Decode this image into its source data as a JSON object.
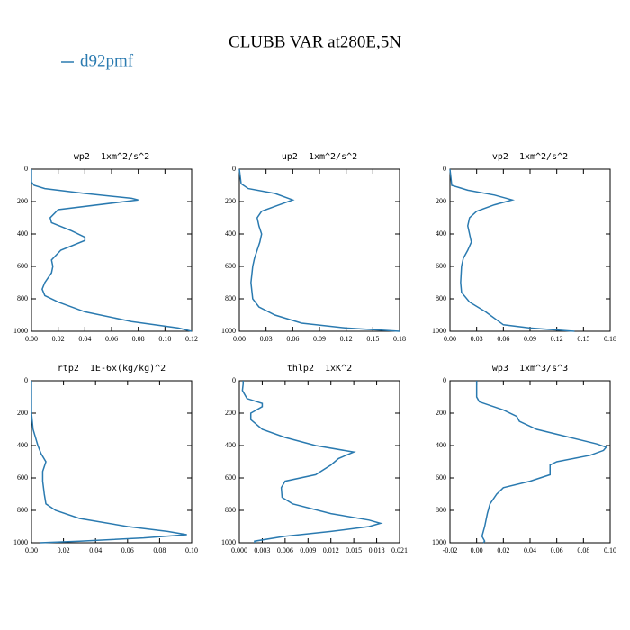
{
  "title": "CLUBB VAR at280E,5N",
  "legend": {
    "name": "d92pmf",
    "color": "#2a7ab0"
  },
  "chart_data": [
    {
      "type": "line",
      "title": "wp2  1xm^2/s^2",
      "levels": [
        0,
        80,
        100,
        120,
        150,
        180,
        190,
        200,
        250,
        300,
        330,
        380,
        420,
        440,
        500,
        560,
        600,
        640,
        700,
        740,
        780,
        820,
        880,
        940,
        980,
        1000
      ],
      "series": [
        {
          "values": [
            0,
            0,
            0.002,
            0.01,
            0.04,
            0.075,
            0.08,
            0.07,
            0.02,
            0.014,
            0.015,
            0.03,
            0.04,
            0.04,
            0.022,
            0.015,
            0.016,
            0.015,
            0.01,
            0.008,
            0.01,
            0.02,
            0.04,
            0.075,
            0.11,
            0.12
          ]
        }
      ],
      "xlim": [
        0,
        0.12
      ],
      "xticks": [
        {
          "value": 0,
          "label": "0.00"
        },
        {
          "value": 0.02,
          "label": "0.02"
        },
        {
          "value": 0.04,
          "label": "0.04"
        },
        {
          "value": 0.06,
          "label": "0.06"
        },
        {
          "value": 0.08,
          "label": "0.08"
        },
        {
          "value": 0.1,
          "label": "0.10"
        },
        {
          "value": 0.12,
          "label": "0.12"
        }
      ],
      "ylim": [
        0,
        1000
      ],
      "y_inverted": true,
      "yticks": [
        0,
        200,
        400,
        600,
        800,
        1000
      ]
    },
    {
      "type": "line",
      "title": "up2  1xm^2/s^2",
      "levels": [
        0,
        90,
        120,
        150,
        190,
        220,
        260,
        300,
        350,
        400,
        450,
        500,
        550,
        600,
        700,
        800,
        850,
        900,
        950,
        980,
        1000
      ],
      "series": [
        {
          "values": [
            0,
            0.002,
            0.01,
            0.04,
            0.06,
            0.045,
            0.025,
            0.02,
            0.022,
            0.025,
            0.023,
            0.02,
            0.017,
            0.015,
            0.013,
            0.015,
            0.022,
            0.04,
            0.07,
            0.12,
            0.18
          ]
        }
      ],
      "xlim": [
        0,
        0.18
      ],
      "xticks": [
        {
          "value": 0,
          "label": "0.00"
        },
        {
          "value": 0.03,
          "label": "0.03"
        },
        {
          "value": 0.06,
          "label": "0.06"
        },
        {
          "value": 0.09,
          "label": "0.09"
        },
        {
          "value": 0.12,
          "label": "0.12"
        },
        {
          "value": 0.15,
          "label": "0.15"
        },
        {
          "value": 0.18,
          "label": "0.18"
        }
      ],
      "ylim": [
        0,
        1000
      ],
      "y_inverted": true,
      "yticks": [
        0,
        200,
        400,
        600,
        800,
        1000
      ]
    },
    {
      "type": "line",
      "title": "vp2  1xm^2/s^2",
      "levels": [
        0,
        100,
        130,
        160,
        190,
        220,
        260,
        300,
        350,
        400,
        450,
        500,
        550,
        600,
        700,
        760,
        820,
        880,
        940,
        960,
        980,
        1000
      ],
      "series": [
        {
          "values": [
            0,
            0.002,
            0.02,
            0.05,
            0.07,
            0.05,
            0.03,
            0.022,
            0.02,
            0.022,
            0.024,
            0.02,
            0.015,
            0.013,
            0.012,
            0.013,
            0.022,
            0.04,
            0.055,
            0.06,
            0.09,
            0.14
          ]
        }
      ],
      "xlim": [
        0,
        0.18
      ],
      "xticks": [
        {
          "value": 0,
          "label": "0.00"
        },
        {
          "value": 0.03,
          "label": "0.03"
        },
        {
          "value": 0.06,
          "label": "0.06"
        },
        {
          "value": 0.09,
          "label": "0.09"
        },
        {
          "value": 0.12,
          "label": "0.12"
        },
        {
          "value": 0.15,
          "label": "0.15"
        },
        {
          "value": 0.18,
          "label": "0.18"
        }
      ],
      "ylim": [
        0,
        1000
      ],
      "y_inverted": true,
      "yticks": [
        0,
        200,
        400,
        600,
        800,
        1000
      ]
    },
    {
      "type": "line",
      "title": "rtp2  1E-6x(kg/kg)^2",
      "levels": [
        0,
        200,
        300,
        400,
        450,
        500,
        560,
        620,
        700,
        760,
        800,
        850,
        900,
        930,
        950,
        970,
        990,
        1000
      ],
      "series": [
        {
          "values": [
            0,
            0,
            0.001,
            0.004,
            0.006,
            0.009,
            0.007,
            0.007,
            0.008,
            0.009,
            0.015,
            0.03,
            0.06,
            0.085,
            0.097,
            0.07,
            0.03,
            0.005
          ]
        }
      ],
      "xlim": [
        0,
        0.1
      ],
      "xticks": [
        {
          "value": 0,
          "label": "0.00"
        },
        {
          "value": 0.02,
          "label": "0.02"
        },
        {
          "value": 0.04,
          "label": "0.04"
        },
        {
          "value": 0.06,
          "label": "0.06"
        },
        {
          "value": 0.08,
          "label": "0.08"
        },
        {
          "value": 0.1,
          "label": "0.10"
        }
      ],
      "ylim": [
        0,
        1000
      ],
      "y_inverted": true,
      "yticks": [
        0,
        200,
        400,
        600,
        800,
        1000
      ]
    },
    {
      "type": "line",
      "title": "thlp2  1xK^2",
      "levels": [
        0,
        20,
        60,
        110,
        140,
        160,
        200,
        240,
        300,
        350,
        400,
        440,
        480,
        520,
        580,
        620,
        660,
        720,
        760,
        820,
        860,
        880,
        900,
        930,
        960,
        990,
        1000
      ],
      "series": [
        {
          "values": [
            0.0005,
            0.0005,
            0.0004,
            0.001,
            0.003,
            0.003,
            0.0015,
            0.0015,
            0.003,
            0.006,
            0.01,
            0.015,
            0.013,
            0.012,
            0.01,
            0.006,
            0.0055,
            0.0056,
            0.007,
            0.012,
            0.017,
            0.0185,
            0.017,
            0.012,
            0.006,
            0.002,
            0.002
          ]
        }
      ],
      "xlim": [
        0,
        0.021
      ],
      "xticks": [
        {
          "value": 0,
          "label": "0.000"
        },
        {
          "value": 0.003,
          "label": "0.003"
        },
        {
          "value": 0.006,
          "label": "0.006"
        },
        {
          "value": 0.009,
          "label": "0.009"
        },
        {
          "value": 0.012,
          "label": "0.012"
        },
        {
          "value": 0.015,
          "label": "0.015"
        },
        {
          "value": 0.018,
          "label": "0.018"
        },
        {
          "value": 0.021,
          "label": "0.021"
        }
      ],
      "ylim": [
        0,
        1000
      ],
      "y_inverted": true,
      "yticks": [
        0,
        200,
        400,
        600,
        800,
        1000
      ]
    },
    {
      "type": "line",
      "title": "wp3  1xm^3/s^3",
      "levels": [
        0,
        100,
        130,
        180,
        220,
        250,
        300,
        350,
        390,
        410,
        430,
        460,
        500,
        520,
        580,
        620,
        660,
        700,
        760,
        820,
        900,
        960,
        990,
        1000
      ],
      "series": [
        {
          "values": [
            0,
            0,
            0.002,
            0.02,
            0.03,
            0.032,
            0.045,
            0.07,
            0.09,
            0.097,
            0.095,
            0.085,
            0.06,
            0.055,
            0.055,
            0.04,
            0.02,
            0.015,
            0.01,
            0.008,
            0.006,
            0.004,
            0.006,
            0.005
          ]
        }
      ],
      "xlim": [
        -0.02,
        0.1
      ],
      "xticks": [
        {
          "value": -0.02,
          "label": "-0.02"
        },
        {
          "value": 0,
          "label": "0.00"
        },
        {
          "value": 0.02,
          "label": "0.02"
        },
        {
          "value": 0.04,
          "label": "0.04"
        },
        {
          "value": 0.06,
          "label": "0.06"
        },
        {
          "value": 0.08,
          "label": "0.08"
        },
        {
          "value": 0.1,
          "label": "0.10"
        }
      ],
      "ylim": [
        0,
        1000
      ],
      "y_inverted": true,
      "yticks": [
        0,
        200,
        400,
        600,
        800,
        1000
      ]
    }
  ]
}
